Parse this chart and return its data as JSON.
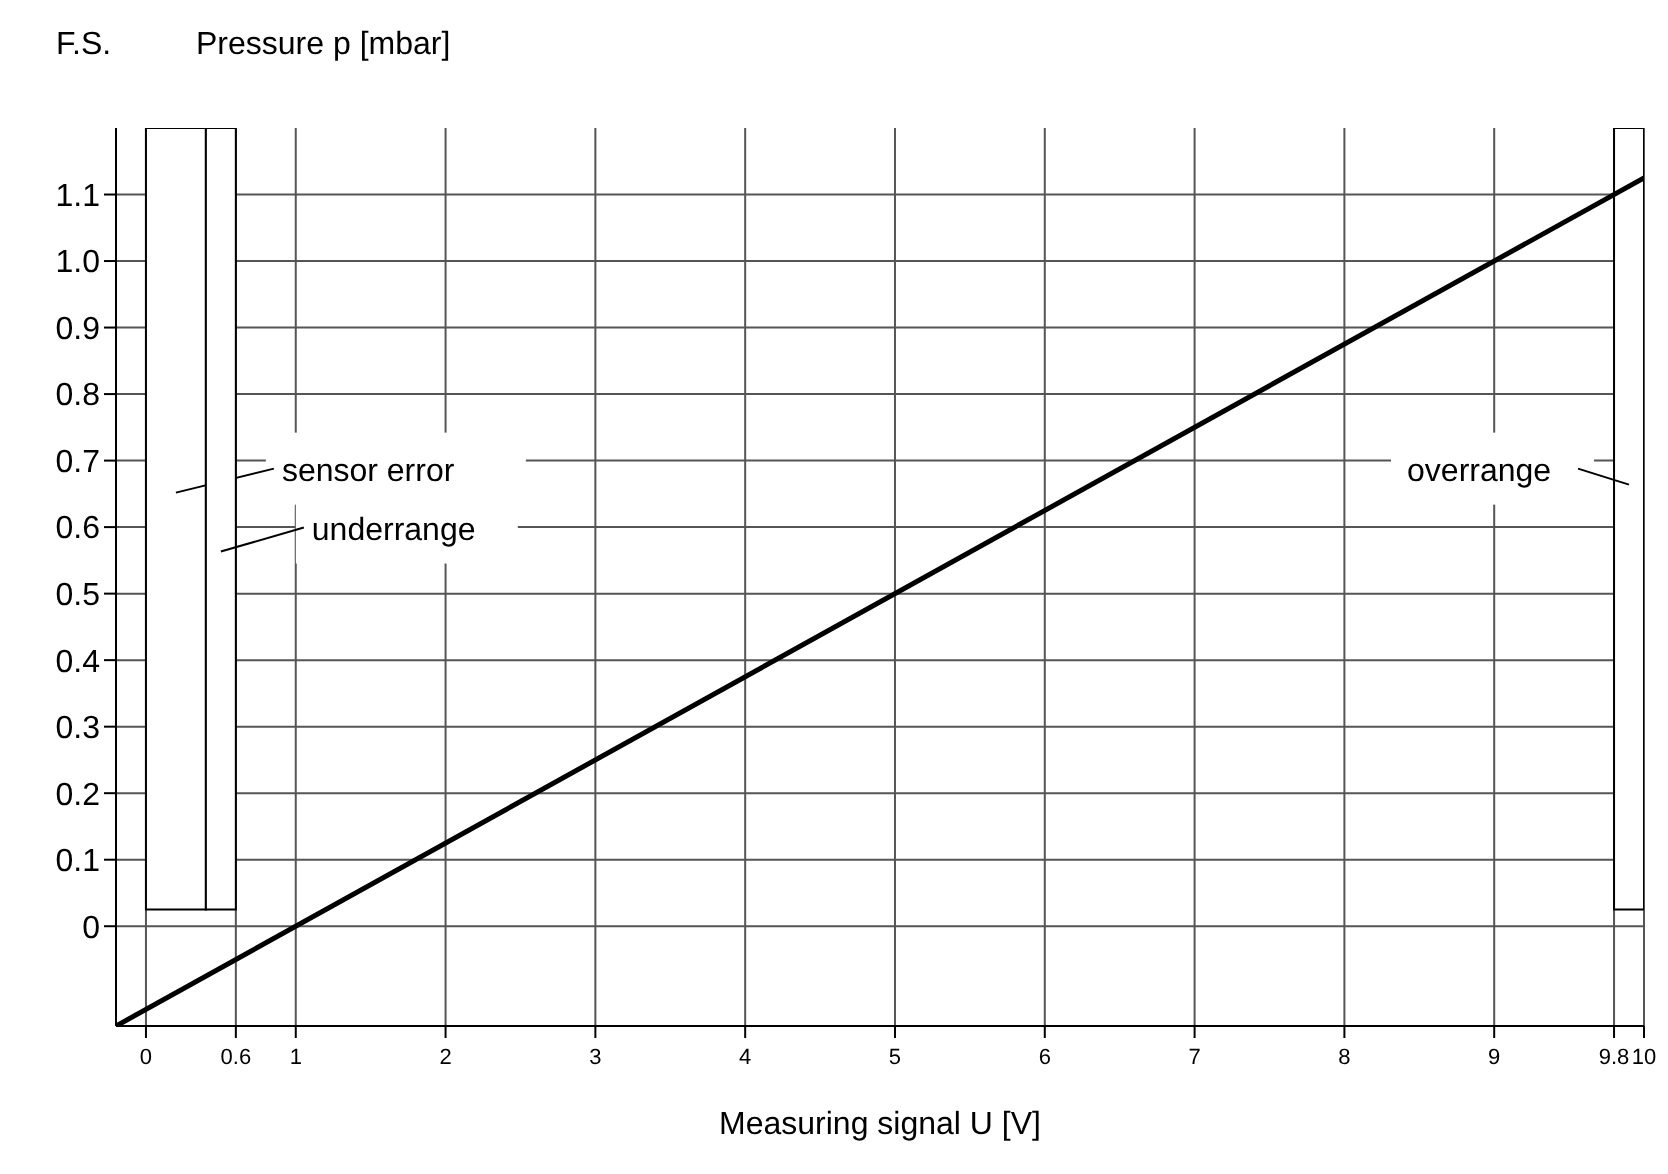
{
  "chart_data": {
    "type": "line",
    "ylabel": "Pressure p [mbar]",
    "xlabel": "Measuring signal U [V]",
    "annotations": [
      "F.S."
    ],
    "series": [
      {
        "color": "#000000",
        "x": [
          -0.2,
          10
        ],
        "values": [
          -0.15,
          1.125
        ]
      }
    ],
    "xlim": [
      -0.2,
      10
    ],
    "xticks": [
      0,
      {
        "value": 0.6,
        "label": "0.6"
      },
      1,
      2,
      3,
      4,
      5,
      6,
      7,
      8,
      9,
      {
        "value": 9.8,
        "label": "9.8"
      },
      10
    ],
    "ylim": [
      -0.15,
      1.2
    ],
    "yticks": [
      0,
      0.1,
      0.2,
      0.3,
      0.4,
      0.5,
      0.6,
      0.7,
      0.8,
      0.9,
      {
        "value": 1,
        "label": "1.0"
      },
      1.1
    ],
    "bands": [
      {
        "axis": "x",
        "from": 0,
        "to": 0.4,
        "label": "sensor error",
        "color": "#ffffff"
      },
      {
        "axis": "x",
        "from": 0.4,
        "to": 0.6,
        "label": "underrange",
        "color": "#ffffff"
      },
      {
        "axis": "x",
        "from": 9.8,
        "to": 10,
        "label": "overrange",
        "color": "#ffffff"
      }
    ],
    "grid": true,
    "marker": "none",
    "line_style": "solid"
  }
}
